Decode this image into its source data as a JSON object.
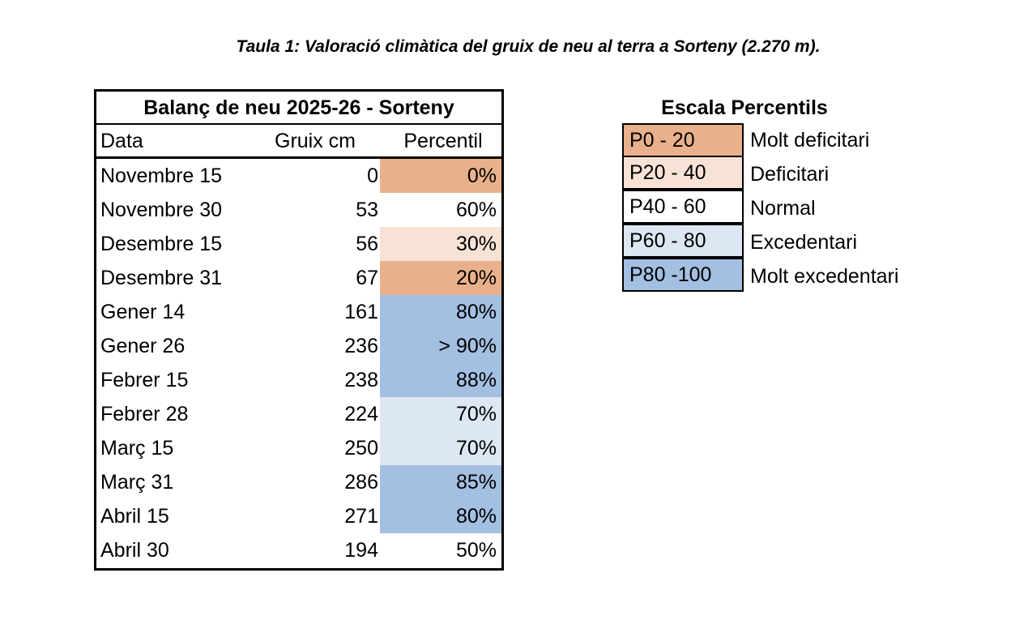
{
  "caption": "Taula 1: Valoració climàtica del gruix de neu al terra a Sorteny (2.270 m).",
  "table": {
    "title": "Balanç de neu 2025-26 - Sorteny",
    "headers": {
      "date": "Data",
      "depth": "Gruix cm",
      "percentile": "Percentil"
    },
    "rows": [
      {
        "date": "Novembre 15",
        "depth": "0",
        "percentile": "0%",
        "class": "P0 - 20"
      },
      {
        "date": "Novembre 30",
        "depth": "53",
        "percentile": "60%",
        "class": "P40 - 60"
      },
      {
        "date": "Desembre 15",
        "depth": "56",
        "percentile": "30%",
        "class": "P20 - 40"
      },
      {
        "date": "Desembre 31",
        "depth": "67",
        "percentile": "20%",
        "class": "P0 - 20"
      },
      {
        "date": "Gener 14",
        "depth": "161",
        "percentile": "80%",
        "class": "P80 -100"
      },
      {
        "date": "Gener 26",
        "depth": "236",
        "percentile": "> 90%",
        "class": "P80 -100"
      },
      {
        "date": "Febrer 15",
        "depth": "238",
        "percentile": "88%",
        "class": "P80 -100"
      },
      {
        "date": "Febrer 28",
        "depth": "224",
        "percentile": "70%",
        "class": "P60 - 80"
      },
      {
        "date": "Març 15",
        "depth": "250",
        "percentile": "70%",
        "class": "P60 - 80"
      },
      {
        "date": "Març 31",
        "depth": "286",
        "percentile": "85%",
        "class": "P80 -100"
      },
      {
        "date": "Abril 15",
        "depth": "271",
        "percentile": "80%",
        "class": "P80 -100"
      },
      {
        "date": "Abril 30",
        "depth": "194",
        "percentile": "50%",
        "class": "P40 - 60"
      }
    ]
  },
  "legend": {
    "title": "Escala Percentils",
    "items": [
      {
        "range": "P0 - 20",
        "label": "Molt deficitari",
        "color": "#e9b18b"
      },
      {
        "range": "P20 - 40",
        "label": "Deficitari",
        "color": "#f8e2d6"
      },
      {
        "range": "P40 - 60",
        "label": "Normal",
        "color": "#ffffff"
      },
      {
        "range": "P60 - 80",
        "label": "Excedentari",
        "color": "#dde7f3"
      },
      {
        "range": "P80 -100",
        "label": "Molt excedentari",
        "color": "#a3bfe2"
      }
    ]
  }
}
